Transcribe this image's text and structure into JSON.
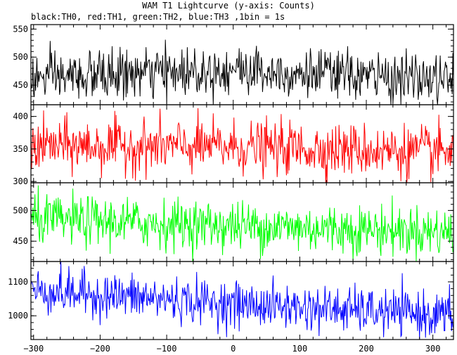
{
  "title": "WAM T1 Lightcurve (y-axis: Counts)",
  "subtitle": "black:TH0, red:TH1, green:TH2, blue:TH3 ,1bin = 1s",
  "chart_data": {
    "type": "line",
    "title": "WAM T1 Lightcurve (y-axis: Counts)",
    "subtitle": "black:TH0, red:TH1, green:TH2, blue:TH3 ,1bin = 1s",
    "xlim": [
      -304,
      331
    ],
    "x_ticks": [
      -300,
      -200,
      -100,
      0,
      100,
      200,
      300
    ],
    "x_tick_labels": [
      "−300",
      "−200",
      "−100",
      "0",
      "100",
      "200",
      "300"
    ],
    "x_step": 1,
    "grid": false,
    "panels": [
      {
        "series": "TH0",
        "color": "#000000",
        "ylim": [
          415,
          558
        ],
        "y_ticks": [
          450,
          500,
          550
        ],
        "mean_trend": {
          "x": [
            -300,
            0,
            330
          ],
          "y": [
            462,
            478,
            458
          ]
        },
        "noise_sd": 22,
        "range": [
          415,
          558
        ]
      },
      {
        "series": "TH1",
        "color": "#ff0000",
        "ylim": [
          298,
          418
        ],
        "y_ticks": [
          300,
          350,
          400
        ],
        "mean_trend": {
          "x": [
            -300,
            0,
            330
          ],
          "y": [
            355,
            353,
            345
          ]
        },
        "noise_sd": 20,
        "range": [
          298,
          418
        ]
      },
      {
        "series": "TH2",
        "color": "#00ff00",
        "ylim": [
          417,
          545
        ],
        "y_ticks": [
          450,
          500
        ],
        "mean_trend": {
          "x": [
            -300,
            0,
            330
          ],
          "y": [
            485,
            475,
            465
          ]
        },
        "noise_sd": 20,
        "range": [
          417,
          545
        ]
      },
      {
        "series": "TH3",
        "color": "#0000ff",
        "ylim": [
          930,
          1160
        ],
        "y_ticks": [
          1000,
          1100
        ],
        "mean_trend": {
          "x": [
            -300,
            0,
            330
          ],
          "y": [
            1075,
            1035,
            1000
          ]
        },
        "noise_sd": 33,
        "range": [
          930,
          1160
        ]
      }
    ]
  }
}
